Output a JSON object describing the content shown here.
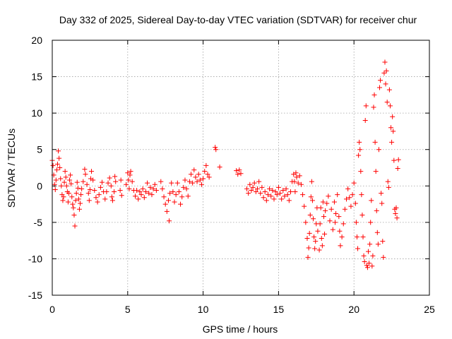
{
  "chart_data": {
    "type": "scatter",
    "title": "Day 332 of 2025, Sidereal Day-to-day VTEC variation (SDTVAR) for receiver chur",
    "xlabel": "GPS time / hours",
    "ylabel": "SDTVAR / TECUs",
    "xlim": [
      0,
      25
    ],
    "ylim": [
      -15,
      20
    ],
    "xticks": [
      0,
      5,
      10,
      15,
      20,
      25
    ],
    "yticks": [
      -15,
      -10,
      -5,
      0,
      5,
      10,
      15,
      20
    ],
    "grid": true,
    "marker": "+",
    "color": "#ff0000",
    "series": [
      {
        "name": "SDTVAR",
        "points": [
          [
            0.0,
            3.5
          ],
          [
            0.05,
            2.8
          ],
          [
            0.1,
            1.5
          ],
          [
            0.15,
            0.2
          ],
          [
            0.2,
            -0.5
          ],
          [
            0.25,
            0.8
          ],
          [
            0.3,
            2.2
          ],
          [
            0.35,
            3.0
          ],
          [
            0.4,
            4.8
          ],
          [
            0.45,
            3.8
          ],
          [
            0.5,
            2.5
          ],
          [
            0.55,
            1.0
          ],
          [
            0.6,
            0.0
          ],
          [
            0.65,
            -1.2
          ],
          [
            0.7,
            -2.0
          ],
          [
            0.75,
            -1.5
          ],
          [
            0.8,
            0.5
          ],
          [
            0.85,
            2.0
          ],
          [
            0.9,
            1.2
          ],
          [
            0.95,
            0.0
          ],
          [
            1.0,
            -0.8
          ],
          [
            1.05,
            -2.2
          ],
          [
            1.1,
            -1.0
          ],
          [
            1.15,
            0.8
          ],
          [
            1.2,
            1.5
          ],
          [
            1.25,
            0.3
          ],
          [
            1.3,
            -1.5
          ],
          [
            1.35,
            -2.5
          ],
          [
            1.4,
            -3.0
          ],
          [
            1.45,
            -4.0
          ],
          [
            1.5,
            -5.5
          ],
          [
            1.55,
            -2.0
          ],
          [
            1.6,
            -1.0
          ],
          [
            1.65,
            0.5
          ],
          [
            1.7,
            -0.3
          ],
          [
            1.75,
            -1.8
          ],
          [
            1.8,
            -3.2
          ],
          [
            1.85,
            -2.4
          ],
          [
            1.9,
            -1.2
          ],
          [
            1.95,
            -0.4
          ],
          [
            2.05,
            0.6
          ],
          [
            2.15,
            2.3
          ],
          [
            2.2,
            1.6
          ],
          [
            2.3,
            0.2
          ],
          [
            2.4,
            -1.0
          ],
          [
            2.45,
            -2.0
          ],
          [
            2.5,
            -0.5
          ],
          [
            2.55,
            1.0
          ],
          [
            2.6,
            2.0
          ],
          [
            2.7,
            0.8
          ],
          [
            2.8,
            -0.6
          ],
          [
            2.9,
            -1.6
          ],
          [
            3.0,
            -2.2
          ],
          [
            3.1,
            -1.2
          ],
          [
            3.2,
            -0.2
          ],
          [
            3.3,
            0.5
          ],
          [
            3.4,
            -0.8
          ],
          [
            3.5,
            -1.8
          ],
          [
            3.6,
            -0.8
          ],
          [
            3.7,
            0.4
          ],
          [
            3.8,
            1.1
          ],
          [
            3.9,
            0.0
          ],
          [
            3.95,
            -1.5
          ],
          [
            4.0,
            -2.0
          ],
          [
            4.1,
            -0.8
          ],
          [
            4.15,
            1.3
          ],
          [
            4.2,
            0.6
          ],
          [
            4.5,
            -0.6
          ],
          [
            4.55,
            0.8
          ],
          [
            4.6,
            -1.3
          ],
          [
            4.9,
            0.2
          ],
          [
            5.0,
            1.8
          ],
          [
            5.05,
            0.8
          ],
          [
            5.1,
            -0.4
          ],
          [
            5.15,
            1.5
          ],
          [
            5.2,
            2.0
          ],
          [
            5.3,
            0.6
          ],
          [
            5.4,
            -0.6
          ],
          [
            5.5,
            -1.4
          ],
          [
            5.6,
            -0.6
          ],
          [
            5.7,
            -1.8
          ],
          [
            5.8,
            -0.8
          ],
          [
            5.9,
            -1.2
          ],
          [
            6.0,
            -0.4
          ],
          [
            6.1,
            -1.6
          ],
          [
            6.2,
            -0.8
          ],
          [
            6.3,
            0.4
          ],
          [
            6.4,
            -1.0
          ],
          [
            6.5,
            -0.2
          ],
          [
            6.6,
            -1.2
          ],
          [
            6.7,
            -0.4
          ],
          [
            6.8,
            0.2
          ],
          [
            6.9,
            -0.6
          ],
          [
            7.2,
            0.6
          ],
          [
            7.3,
            -0.4
          ],
          [
            7.4,
            -1.5
          ],
          [
            7.5,
            -2.5
          ],
          [
            7.6,
            -3.5
          ],
          [
            7.7,
            -2.0
          ],
          [
            7.75,
            -4.8
          ],
          [
            7.8,
            -1.0
          ],
          [
            7.9,
            0.4
          ],
          [
            8.0,
            -0.8
          ],
          [
            8.1,
            -2.2
          ],
          [
            8.2,
            -1.2
          ],
          [
            8.3,
            0.4
          ],
          [
            8.4,
            -0.8
          ],
          [
            8.5,
            -2.5
          ],
          [
            8.6,
            -1.5
          ],
          [
            8.7,
            -0.2
          ],
          [
            8.8,
            0.8
          ],
          [
            8.9,
            -0.4
          ],
          [
            9.0,
            -1.4
          ],
          [
            9.1,
            0.6
          ],
          [
            9.2,
            1.6
          ],
          [
            9.3,
            0.4
          ],
          [
            9.4,
            2.2
          ],
          [
            9.5,
            1.2
          ],
          [
            9.6,
            0.6
          ],
          [
            9.7,
            1.6
          ],
          [
            9.8,
            0.8
          ],
          [
            9.9,
            0.2
          ],
          [
            10.0,
            1.0
          ],
          [
            10.1,
            2.0
          ],
          [
            10.2,
            2.8
          ],
          [
            10.3,
            1.6
          ],
          [
            10.4,
            1.2
          ],
          [
            10.8,
            5.3
          ],
          [
            10.85,
            5.0
          ],
          [
            11.1,
            2.6
          ],
          [
            12.2,
            2.1
          ],
          [
            12.3,
            1.6
          ],
          [
            12.4,
            2.2
          ],
          [
            12.5,
            1.7
          ],
          [
            12.9,
            -0.4
          ],
          [
            13.0,
            -1.0
          ],
          [
            13.1,
            0.2
          ],
          [
            13.2,
            -0.6
          ],
          [
            13.3,
            -0.2
          ],
          [
            13.4,
            0.4
          ],
          [
            13.5,
            -0.8
          ],
          [
            13.6,
            -0.4
          ],
          [
            13.7,
            0.6
          ],
          [
            13.8,
            -1.0
          ],
          [
            13.9,
            -0.2
          ],
          [
            14.0,
            -1.6
          ],
          [
            14.1,
            -0.8
          ],
          [
            14.2,
            -2.0
          ],
          [
            14.3,
            -1.2
          ],
          [
            14.4,
            -0.4
          ],
          [
            14.5,
            -1.4
          ],
          [
            14.6,
            -0.6
          ],
          [
            14.7,
            -1.8
          ],
          [
            14.8,
            -0.8
          ],
          [
            14.9,
            -1.2
          ],
          [
            15.0,
            -0.2
          ],
          [
            15.1,
            -1.0
          ],
          [
            15.2,
            -1.8
          ],
          [
            15.3,
            -0.6
          ],
          [
            15.4,
            -1.4
          ],
          [
            15.5,
            -0.4
          ],
          [
            15.6,
            -1.2
          ],
          [
            15.7,
            -2.0
          ],
          [
            15.8,
            -0.8
          ],
          [
            15.9,
            0.6
          ],
          [
            16.0,
            1.6
          ],
          [
            16.05,
            0.6
          ],
          [
            16.1,
            -0.8
          ],
          [
            16.15,
            1.8
          ],
          [
            16.2,
            1.2
          ],
          [
            16.3,
            0.4
          ],
          [
            16.4,
            1.4
          ],
          [
            16.5,
            0.2
          ],
          [
            16.6,
            -1.2
          ],
          [
            16.7,
            -2.8
          ],
          [
            16.8,
            -5.0
          ],
          [
            16.9,
            -7.2
          ],
          [
            16.95,
            -9.8
          ],
          [
            17.0,
            -8.5
          ],
          [
            17.05,
            -6.5
          ],
          [
            17.1,
            -4.0
          ],
          [
            17.15,
            -1.5
          ],
          [
            17.2,
            0.6
          ],
          [
            17.25,
            -2.0
          ],
          [
            17.3,
            -4.5
          ],
          [
            17.35,
            -7.0
          ],
          [
            17.4,
            -8.6
          ],
          [
            17.45,
            -7.6
          ],
          [
            17.5,
            -5.2
          ],
          [
            17.55,
            -3.0
          ],
          [
            17.6,
            -6.2
          ],
          [
            17.7,
            -8.8
          ],
          [
            17.75,
            -5.2
          ],
          [
            17.8,
            -3.0
          ],
          [
            17.85,
            -7.2
          ],
          [
            17.9,
            -8.2
          ],
          [
            17.95,
            -2.2
          ],
          [
            18.0,
            -4.2
          ],
          [
            18.05,
            -6.6
          ],
          [
            18.1,
            -3.4
          ],
          [
            18.2,
            -2.4
          ],
          [
            18.3,
            -1.4
          ],
          [
            18.4,
            -4.8
          ],
          [
            18.5,
            -3.2
          ],
          [
            18.6,
            -6.0
          ],
          [
            18.7,
            -2.2
          ],
          [
            18.75,
            -5.0
          ],
          [
            18.8,
            -3.8
          ],
          [
            18.9,
            -1.2
          ],
          [
            19.0,
            -4.2
          ],
          [
            19.05,
            -6.2
          ],
          [
            19.1,
            -8.2
          ],
          [
            19.2,
            -7.0
          ],
          [
            19.3,
            -5.2
          ],
          [
            19.4,
            -3.2
          ],
          [
            19.5,
            -1.8
          ],
          [
            19.6,
            -0.4
          ],
          [
            19.7,
            -1.6
          ],
          [
            19.8,
            -2.8
          ],
          [
            19.9,
            -1.2
          ],
          [
            20.0,
            0.4
          ],
          [
            20.1,
            -2.4
          ],
          [
            20.15,
            -5.0
          ],
          [
            20.2,
            -7.0
          ],
          [
            20.25,
            -8.6
          ],
          [
            20.3,
            4.2
          ],
          [
            20.35,
            6.0
          ],
          [
            20.4,
            5.0
          ],
          [
            20.45,
            2.0
          ],
          [
            20.5,
            -1.2
          ],
          [
            20.55,
            -4.0
          ],
          [
            20.6,
            -7.0
          ],
          [
            20.65,
            -9.6
          ],
          [
            20.7,
            -10.4
          ],
          [
            20.75,
            9.0
          ],
          [
            20.8,
            11.0
          ],
          [
            20.85,
            -10.9
          ],
          [
            20.9,
            -11.2
          ],
          [
            20.95,
            -9.0
          ],
          [
            21.0,
            -10.6
          ],
          [
            21.05,
            -8.0
          ],
          [
            21.1,
            -5.0
          ],
          [
            21.15,
            -2.0
          ],
          [
            21.2,
            -11.0
          ],
          [
            21.25,
            -9.6
          ],
          [
            21.3,
            10.8
          ],
          [
            21.35,
            12.5
          ],
          [
            21.4,
            6.0
          ],
          [
            21.45,
            2.0
          ],
          [
            21.5,
            -3.4
          ],
          [
            21.55,
            -6.4
          ],
          [
            21.6,
            -8.0
          ],
          [
            21.65,
            5.0
          ],
          [
            21.7,
            13.5
          ],
          [
            21.75,
            14.5
          ],
          [
            21.8,
            -1.0
          ],
          [
            21.85,
            -2.4
          ],
          [
            21.9,
            -7.6
          ],
          [
            21.95,
            -9.8
          ],
          [
            22.0,
            15.5
          ],
          [
            22.05,
            17.0
          ],
          [
            22.1,
            14.0
          ],
          [
            22.15,
            15.8
          ],
          [
            22.2,
            11.5
          ],
          [
            22.25,
            0.6
          ],
          [
            22.3,
            -0.2
          ],
          [
            22.35,
            13.2
          ],
          [
            22.4,
            11.0
          ],
          [
            22.45,
            8.0
          ],
          [
            22.5,
            6.0
          ],
          [
            22.55,
            9.5
          ],
          [
            22.6,
            7.5
          ],
          [
            22.65,
            3.5
          ],
          [
            22.7,
            -3.2
          ],
          [
            22.75,
            -3.8
          ],
          [
            22.8,
            -3.0
          ],
          [
            22.85,
            -4.4
          ],
          [
            22.9,
            2.4
          ],
          [
            22.95,
            3.6
          ]
        ]
      }
    ]
  }
}
